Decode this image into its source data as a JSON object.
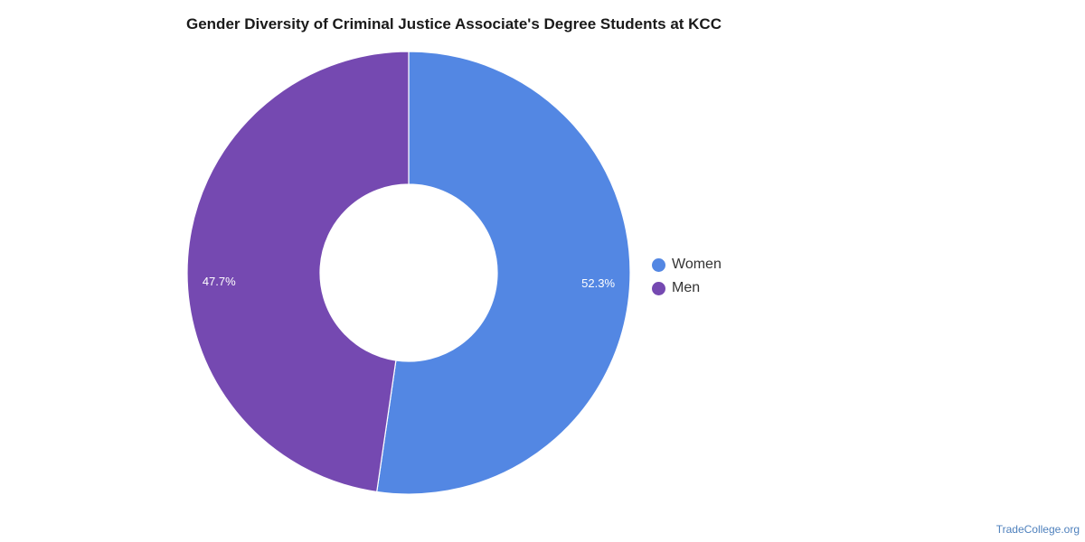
{
  "chart_data": {
    "type": "pie",
    "variant": "donut",
    "title": "Gender Diversity of Criminal Justice Associate's Degree Students at KCC",
    "slices": [
      {
        "label": "Women",
        "value": 52.3,
        "display": "52.3%",
        "color": "#5387e3"
      },
      {
        "label": "Men",
        "value": 47.7,
        "display": "47.7%",
        "color": "#7549b1"
      }
    ],
    "legend_position": "right"
  },
  "credit": "TradeCollege.org"
}
